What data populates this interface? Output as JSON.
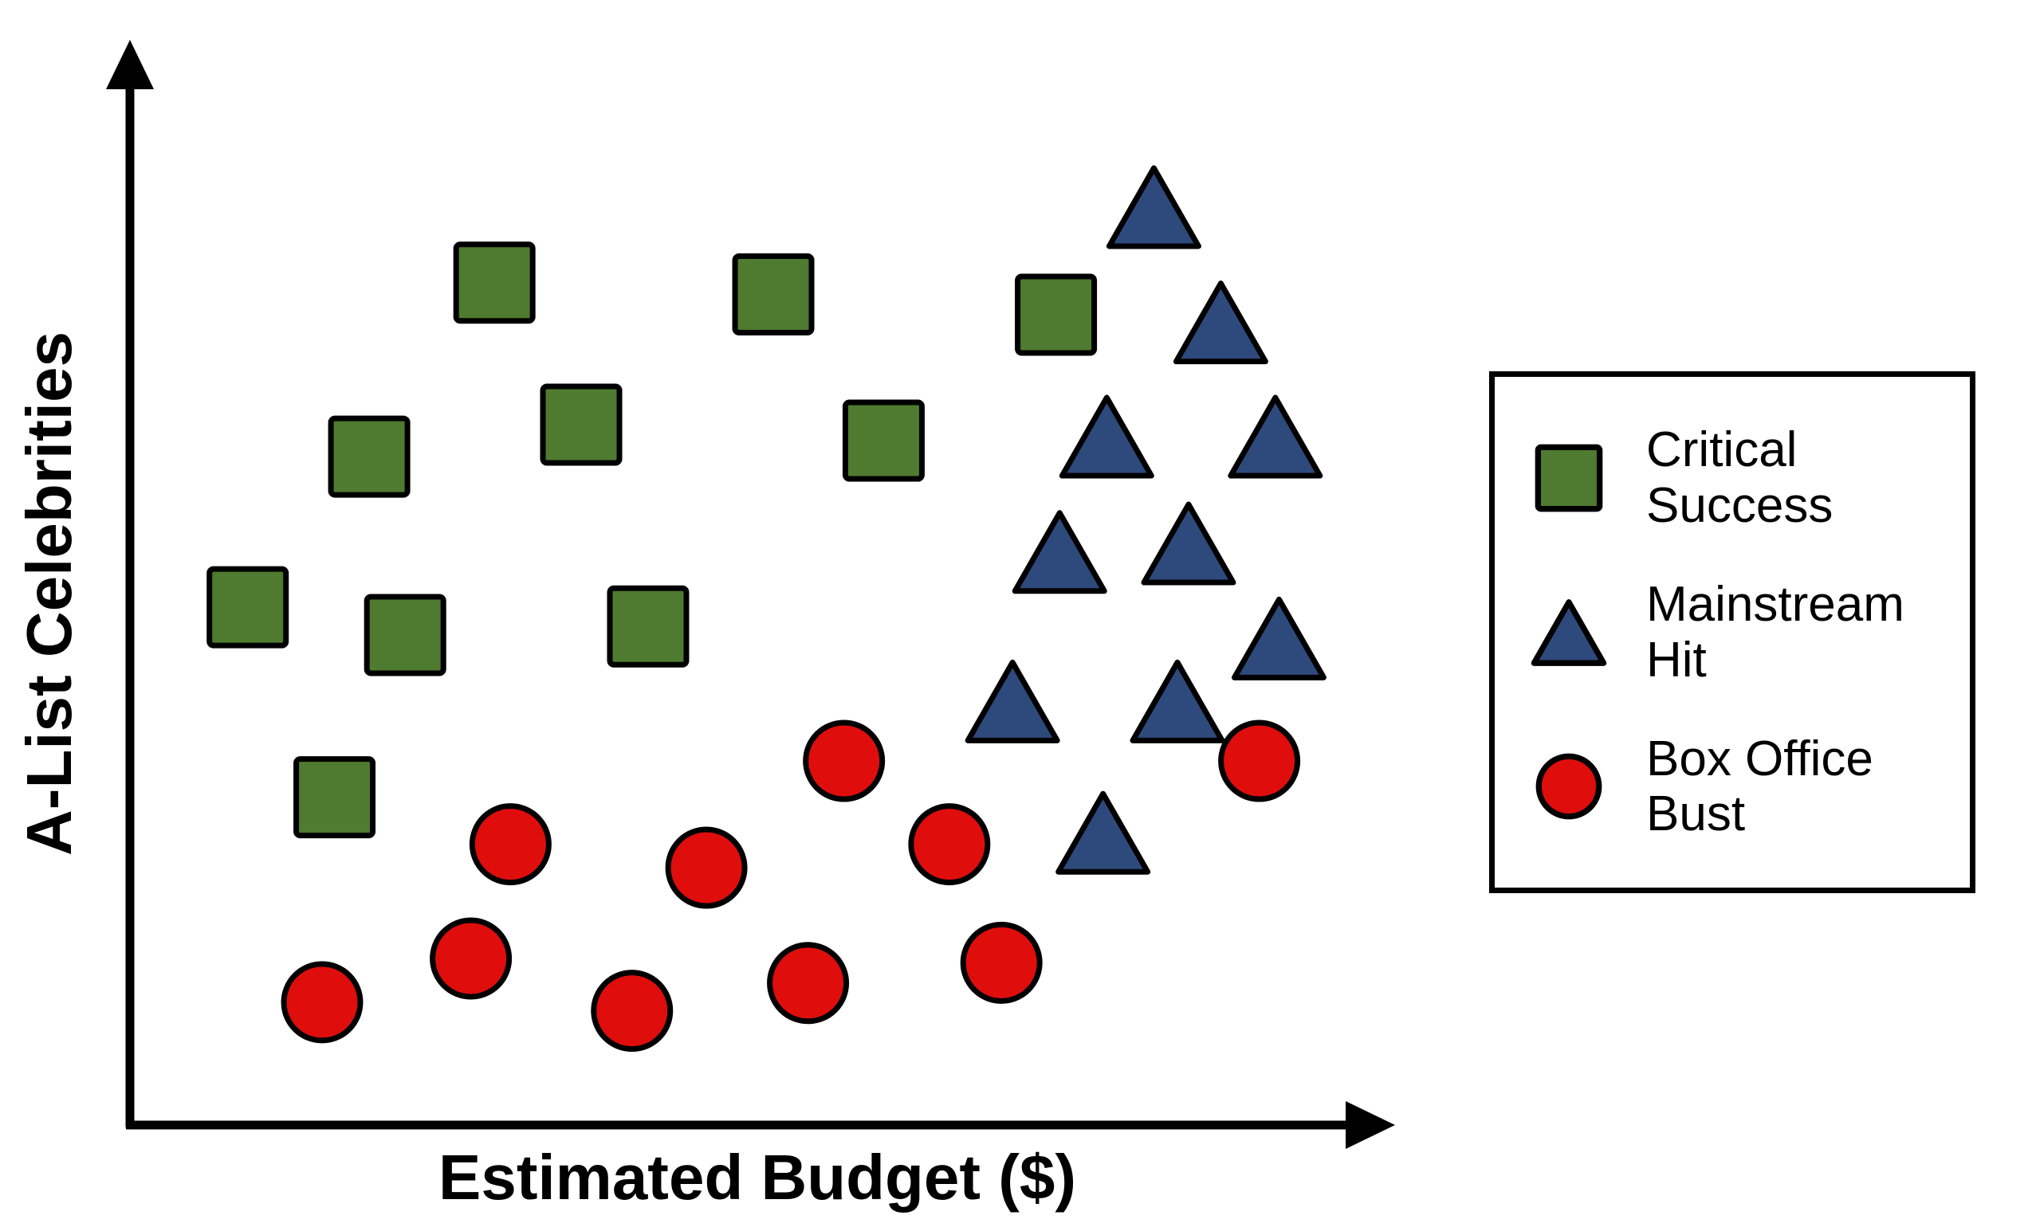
{
  "chart_data": {
    "type": "scatter",
    "xlabel": "Estimated Budget ($)",
    "ylabel": "A-List Celebrities",
    "axes": {
      "x_range": [
        0,
        100
      ],
      "y_range": [
        0,
        100
      ],
      "tick_labels": "none",
      "grid": false,
      "axis_color": "#000000"
    },
    "legend": {
      "position": "right",
      "border_color": "#000000"
    },
    "series": [
      {
        "name": "Critical Success",
        "marker": "square",
        "color": "#4e7b2f",
        "points": [
          {
            "x": 29.4,
            "y": 78.9
          },
          {
            "x": 51.9,
            "y": 77.8
          },
          {
            "x": 74.7,
            "y": 75.9
          },
          {
            "x": 36.4,
            "y": 65.6
          },
          {
            "x": 60.8,
            "y": 64.1
          },
          {
            "x": 19.3,
            "y": 62.6
          },
          {
            "x": 9.5,
            "y": 48.5
          },
          {
            "x": 22.2,
            "y": 45.9
          },
          {
            "x": 41.8,
            "y": 46.7
          },
          {
            "x": 16.5,
            "y": 30.7
          }
        ]
      },
      {
        "name": "Mainstream Hit",
        "marker": "triangle",
        "color": "#2e4a7c",
        "points": [
          {
            "x": 82.6,
            "y": 85.6
          },
          {
            "x": 88.0,
            "y": 74.8
          },
          {
            "x": 78.8,
            "y": 64.1
          },
          {
            "x": 92.4,
            "y": 64.1
          },
          {
            "x": 75.0,
            "y": 53.3
          },
          {
            "x": 85.4,
            "y": 54.1
          },
          {
            "x": 92.7,
            "y": 45.2
          },
          {
            "x": 71.2,
            "y": 39.3
          },
          {
            "x": 84.5,
            "y": 39.3
          },
          {
            "x": 78.5,
            "y": 27.0
          }
        ]
      },
      {
        "name": "Box Office Bust",
        "marker": "circle",
        "color": "#e00d0d",
        "points": [
          {
            "x": 57.6,
            "y": 34.1
          },
          {
            "x": 91.1,
            "y": 34.1
          },
          {
            "x": 30.7,
            "y": 26.3
          },
          {
            "x": 46.5,
            "y": 24.1
          },
          {
            "x": 66.1,
            "y": 26.3
          },
          {
            "x": 27.5,
            "y": 15.6
          },
          {
            "x": 70.3,
            "y": 15.2
          },
          {
            "x": 54.7,
            "y": 13.3
          },
          {
            "x": 15.5,
            "y": 11.5
          },
          {
            "x": 40.5,
            "y": 10.7
          }
        ]
      }
    ]
  }
}
